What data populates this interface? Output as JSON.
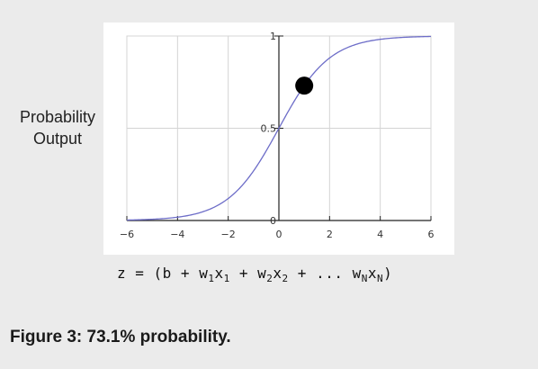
{
  "chart_data": {
    "type": "line",
    "ylabel_lines": [
      "Probability",
      "Output"
    ],
    "xlim": [
      -6,
      6
    ],
    "ylim": [
      0,
      1
    ],
    "xticks": [
      -6,
      -4,
      -2,
      0,
      2,
      4,
      6
    ],
    "xtick_labels": [
      "−6",
      "−4",
      "−2",
      "0",
      "2",
      "4",
      "6"
    ],
    "yticks": [
      0,
      0.5,
      1
    ],
    "ytick_labels": [
      "0",
      "0.5",
      "1"
    ],
    "grid": true,
    "series": [
      {
        "function": "sigmoid",
        "color": "#6d6dc8"
      }
    ],
    "highlight_point": {
      "x": 1.0,
      "y": 0.731,
      "color": "#000000"
    }
  },
  "formula": {
    "prefix": "z = (b + ",
    "w1": "w",
    "w1_sub": "1",
    "x1": "x",
    "x1_sub": "1",
    "plus1": " + ",
    "w2": "w",
    "w2_sub": "2",
    "x2": "x",
    "x2_sub": "2",
    "plus2": " + ... ",
    "wn": "w",
    "wn_sub": "N",
    "xn": "x",
    "xn_sub": "N",
    "suffix": ")"
  },
  "caption": "Figure 3: 73.1% probability."
}
